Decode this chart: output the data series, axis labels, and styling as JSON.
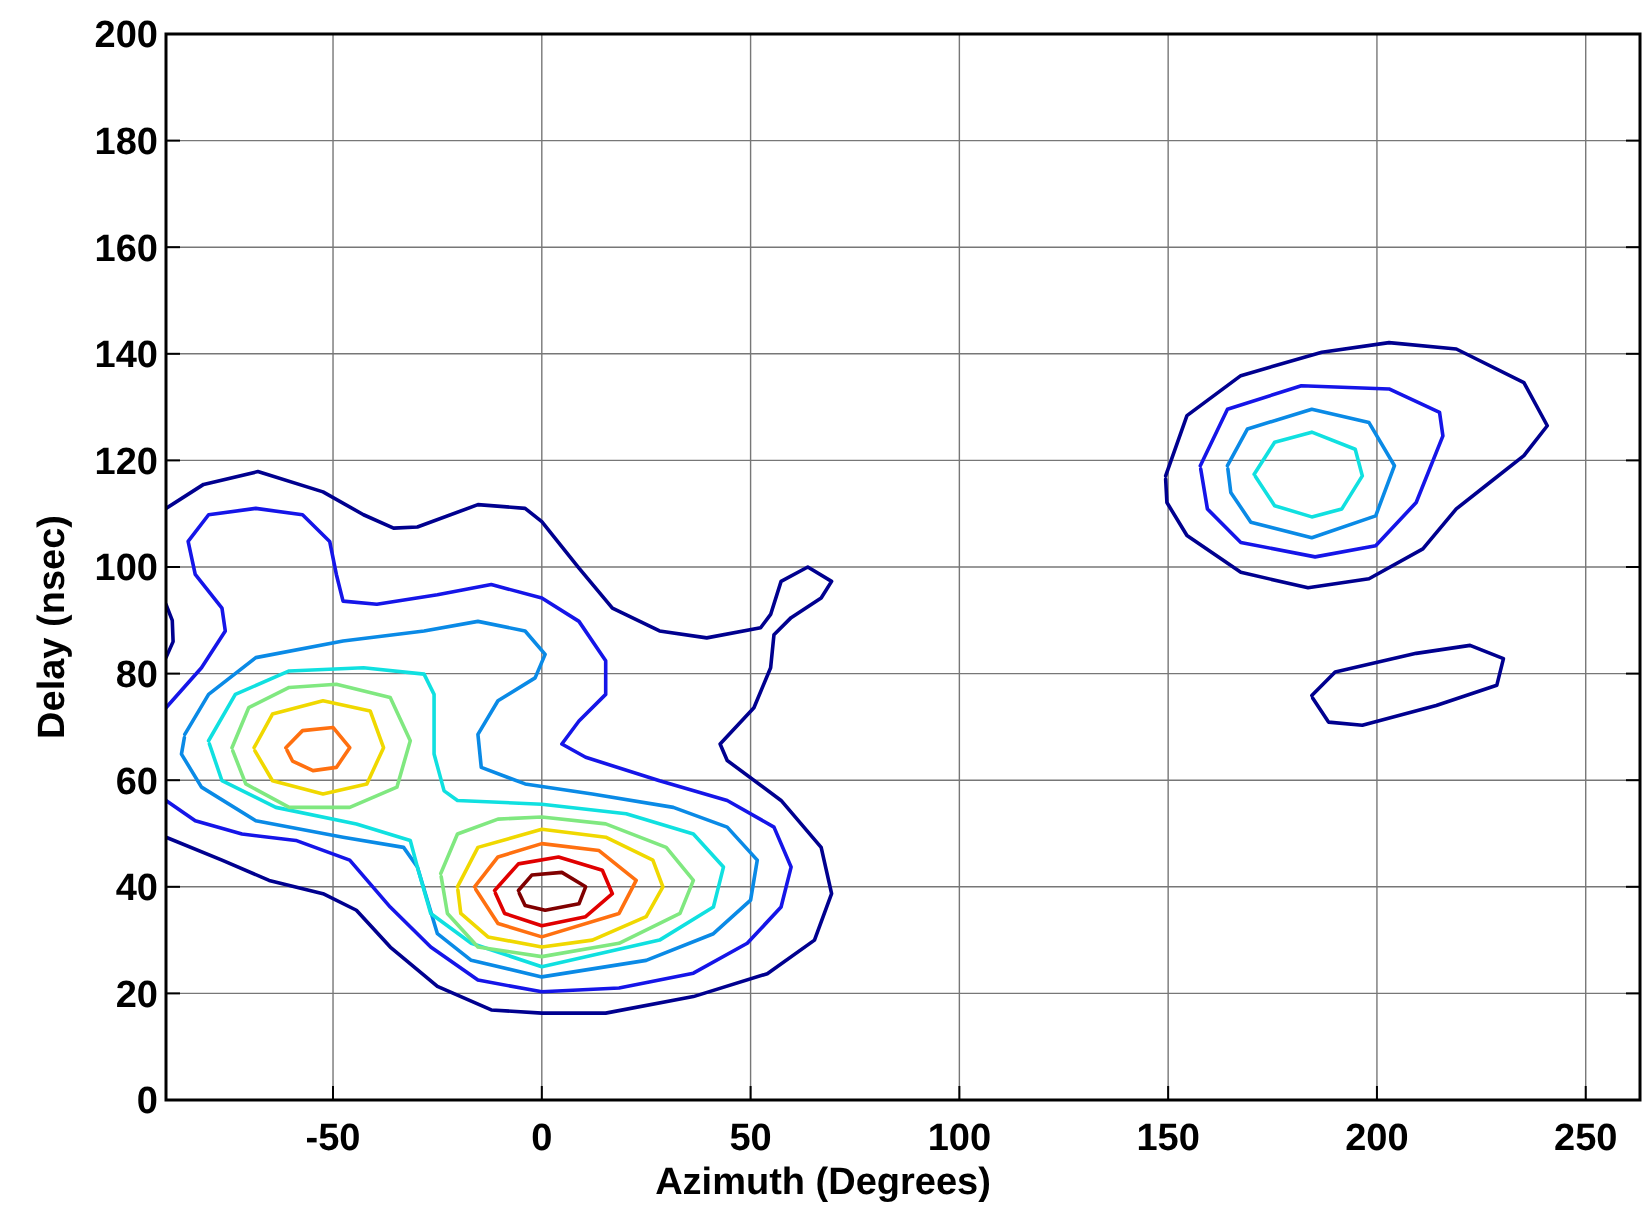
{
  "chart_data": {
    "type": "line",
    "xlabel": "Azimuth (Degrees)",
    "ylabel": "Delay (nsec)",
    "xlim": [
      -90,
      263
    ],
    "ylim": [
      0,
      200
    ],
    "xticks": [
      -50,
      0,
      50,
      100,
      150,
      200,
      250
    ],
    "yticks": [
      0,
      20,
      40,
      60,
      80,
      100,
      120,
      140,
      160,
      180,
      200
    ],
    "grid": true,
    "marker": "none",
    "line_style": "solid",
    "series": [
      {
        "color": "#00008f",
        "x": [
          -90,
          -81,
          -68,
          -52.4,
          -42.7,
          -35.5,
          -29.8,
          -15.3,
          -4,
          0,
          8.9,
          16.9,
          28.2,
          39.5,
          52.4,
          54.8,
          57.3,
          63.7,
          69.4,
          66.9,
          59.7,
          55.6,
          54.8,
          50.8,
          42.7,
          44.4,
          57.3,
          66.9,
          69.4,
          65.3,
          54,
          36.3,
          15.3,
          0,
          -12.1,
          -25,
          -36.3,
          -44.4,
          -52.4,
          -65.3,
          -76.6,
          -90
        ],
        "values": [
          111,
          115.5,
          117.9,
          114.1,
          109.8,
          107.3,
          107.5,
          111.7,
          111,
          108.5,
          99.8,
          92.3,
          88,
          86.7,
          88.6,
          91.1,
          97.3,
          100,
          97.3,
          94.2,
          90.5,
          87.3,
          81.1,
          73.6,
          66.8,
          63.7,
          56.2,
          47.4,
          38.7,
          30,
          23.7,
          19.4,
          16.3,
          16.3,
          16.9,
          21.3,
          28.7,
          35.6,
          38.7,
          41.2,
          45,
          49.3
        ]
      },
      {
        "color": "#00008f",
        "x": [
          -90,
          -88.5,
          -88.3,
          -90
        ],
        "values": [
          93,
          90,
          86,
          83
        ]
      },
      {
        "color": "#1515e8",
        "x": [
          -90,
          -81.5,
          -75.8,
          -76.6,
          -83,
          -84.7,
          -79.8,
          -68.5,
          -57.3,
          -50.8,
          -49.2,
          -47.6,
          -39.5,
          -25,
          -12.1,
          0,
          8.9,
          15.3,
          15.3,
          8.9,
          4.8,
          10.5,
          28.2,
          44.4,
          55.6,
          59.7,
          57.3,
          49.2,
          36.3,
          18.5,
          0,
          -15.3,
          -26.6,
          -36.3,
          -46,
          -58.9,
          -71.8,
          -83,
          -90
        ],
        "values": [
          73.6,
          81.1,
          88,
          92.3,
          98.6,
          104.8,
          109.8,
          111,
          109.8,
          104.8,
          98.6,
          93.6,
          93,
          94.8,
          96.7,
          94.2,
          89.8,
          82.4,
          76.1,
          71.1,
          66.8,
          64.3,
          59.9,
          56.2,
          51.2,
          43.7,
          36.2,
          29.4,
          23.8,
          21,
          20.3,
          22.5,
          28.7,
          36.2,
          45,
          48.7,
          49.9,
          52.4,
          56.2
        ]
      },
      {
        "color": "#0a8ae6",
        "x": [
          -85.5,
          -79.8,
          -68.5,
          -47.6,
          -28.2,
          -15.3,
          -4,
          0.8,
          -1.6,
          -10.5,
          -15.3,
          -14.5,
          -4,
          12.1,
          31.5,
          44.4,
          51.6,
          50,
          41.1,
          25,
          0,
          -16.9,
          -25,
          -29.8,
          -33.1,
          -47.6,
          -68.5,
          -81.5,
          -86.3,
          -85.6
        ],
        "values": [
          68.6,
          76.1,
          83,
          86.1,
          88,
          89.8,
          88,
          83.6,
          79.2,
          74.9,
          68.6,
          62.4,
          59.3,
          57.4,
          54.9,
          51.2,
          45,
          37.5,
          31.2,
          26.2,
          23.1,
          26.2,
          31.2,
          43.7,
          47.4,
          49.3,
          52.4,
          58.7,
          64.9,
          68
        ]
      },
      {
        "color": "#10e0e0",
        "x": [
          -79.8,
          -73.4,
          -60.5,
          -42.7,
          -28.2,
          -25.8,
          -25.8,
          -23.4,
          -20.2,
          0,
          20.2,
          36.3,
          43.5,
          41.1,
          28.2,
          0,
          -16.9,
          -26.6,
          -29.8,
          -31.5,
          -44.4,
          -63.7,
          -76.6,
          -79.6
        ],
        "values": [
          67.4,
          76.1,
          80.5,
          81.1,
          79.9,
          76.1,
          64.9,
          58,
          56.2,
          55.5,
          53.7,
          49.9,
          43.7,
          36.2,
          30,
          25,
          29.4,
          35,
          43.7,
          48.7,
          51.8,
          54.9,
          59.9,
          66.8
        ]
      },
      {
        "color": "#80e880",
        "x": [
          -24.2,
          -20.2,
          -10.5,
          0,
          15.3,
          29.8,
          36.3,
          33.1,
          18.5,
          0,
          -15.3,
          -22.6,
          -24.1
        ],
        "values": [
          42.5,
          49.9,
          52.7,
          53.1,
          51.8,
          47.4,
          41.2,
          35,
          29.4,
          26.9,
          28.7,
          35,
          41.9
        ]
      },
      {
        "color": "#80e880",
        "x": [
          -74.2,
          -70.2,
          -60.5,
          -49.2,
          -36.3,
          -31.5,
          -34.7,
          -46,
          -60.5,
          -70.9,
          -74
        ],
        "values": [
          66.1,
          73.6,
          77.4,
          78,
          75.5,
          67.4,
          58.7,
          54.9,
          54.9,
          59.3,
          65.5
        ]
      },
      {
        "color": "#f0d800",
        "x": [
          -20.2,
          -15.3,
          0,
          15.3,
          26.6,
          29,
          25,
          12.1,
          0,
          -12.9,
          -19.4,
          -20.1
        ],
        "values": [
          40,
          47.4,
          50.8,
          49.3,
          45,
          40,
          34.4,
          30,
          28.7,
          30.6,
          35,
          39.4
        ]
      },
      {
        "color": "#f0d800",
        "x": [
          -68.9,
          -64.5,
          -52.4,
          -41.1,
          -37.9,
          -41.9,
          -52.4,
          -64.5,
          -68.7
        ],
        "values": [
          66.1,
          72.4,
          74.9,
          73,
          66.1,
          59.3,
          57.4,
          59.9,
          65.5
        ]
      },
      {
        "color": "#ff7010",
        "x": [
          -16.1,
          -10.5,
          0,
          13.7,
          22.6,
          18.5,
          0,
          -10.5,
          -15.8
        ],
        "values": [
          40,
          45.6,
          48.1,
          46.8,
          41.2,
          35,
          30.6,
          33.1,
          39.5
        ]
      },
      {
        "color": "#ff7010",
        "x": [
          -61.3,
          -57.3,
          -50,
          -46,
          -49.2,
          -54.8,
          -59.7,
          -61
        ],
        "values": [
          66.1,
          69.3,
          69.9,
          66.1,
          62.4,
          61.8,
          63.6,
          65.6
        ]
      },
      {
        "color": "#e00000",
        "x": [
          -11.3,
          -5.6,
          4,
          14.5,
          16.9,
          10.5,
          0,
          -8.9,
          -11.1
        ],
        "values": [
          39.3,
          44.3,
          45.6,
          43.1,
          38.7,
          34.4,
          32.7,
          35,
          38.8
        ]
      },
      {
        "color": "#800000",
        "x": [
          -5.6,
          -2.4,
          4.8,
          10.5,
          8.9,
          0.8,
          -4,
          -5.4
        ],
        "values": [
          39.3,
          42.2,
          42.7,
          40,
          36.8,
          35.6,
          36.5,
          38.8
        ]
      },
      {
        "color": "#00008f",
        "x": [
          149.4,
          154.5,
          167.4,
          186.8,
          202.9,
          219,
          235.2,
          240.8,
          235.2,
          227.1,
          219,
          211,
          198.1,
          183.5,
          167.4,
          154.5,
          149.7,
          149.4
        ],
        "values": [
          117.1,
          128.4,
          135.9,
          140.3,
          142.1,
          140.9,
          134.6,
          126.5,
          120.9,
          115.9,
          110.9,
          103.4,
          97.8,
          96.1,
          99,
          105.9,
          112.1,
          116.5
        ]
      },
      {
        "color": "#1515e8",
        "x": [
          157.7,
          164.2,
          181.9,
          202.9,
          215,
          215.8,
          209.4,
          199.7,
          185.2,
          167.4,
          159.4,
          157.8
        ],
        "values": [
          119,
          129.6,
          134,
          133.4,
          129,
          124.6,
          112.1,
          104,
          101.9,
          104.6,
          110.9,
          118.4
        ]
      },
      {
        "color": "#0a8ae6",
        "x": [
          164.2,
          169,
          184.4,
          198.1,
          204.2,
          199.7,
          184.4,
          169.8,
          165,
          164.3
        ],
        "values": [
          119,
          125.9,
          129.6,
          127.1,
          119,
          109.6,
          105.5,
          108.4,
          114,
          118.4
        ]
      },
      {
        "color": "#10e0e0",
        "x": [
          170.6,
          175.5,
          184.4,
          194.8,
          196.5,
          191.6,
          184.4,
          175.5,
          170.9
        ],
        "values": [
          117.4,
          123.4,
          125.3,
          122.1,
          117.1,
          110.9,
          109.4,
          111.5,
          117
        ]
      },
      {
        "color": "#00008f",
        "x": [
          184.4,
          190,
          209.4,
          222.3,
          230.3,
          228.7,
          214.2,
          196.5,
          188.4,
          184.6
        ],
        "values": [
          75.9,
          80.3,
          83.8,
          85.3,
          82.8,
          77.8,
          74,
          70.3,
          70.9,
          75.4
        ]
      }
    ]
  }
}
